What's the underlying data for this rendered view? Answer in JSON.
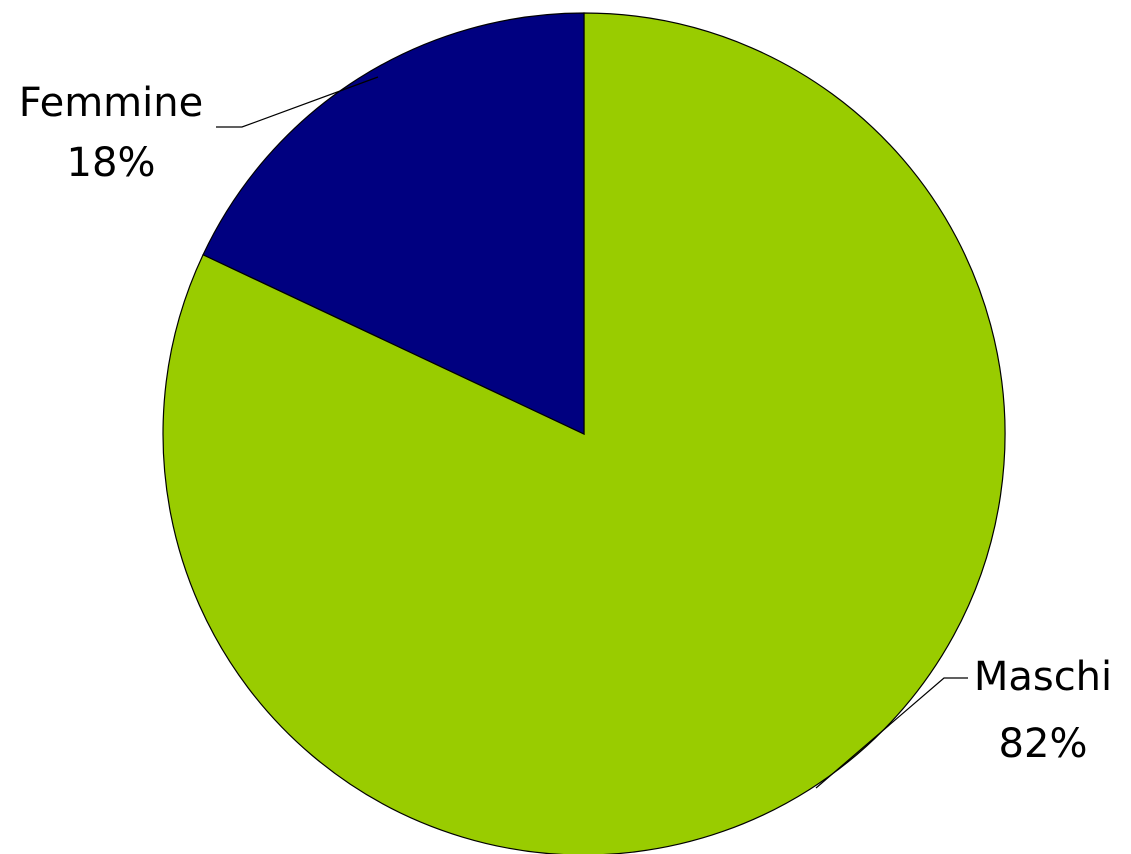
{
  "chart_data": {
    "type": "pie",
    "title": "",
    "start_angle_deg": 90,
    "direction": "clockwise",
    "slices": [
      {
        "label": "Maschi",
        "value": 82,
        "percent_label": "82%",
        "color": "#99CC00"
      },
      {
        "label": "Femmine",
        "value": 18,
        "percent_label": "18%",
        "color": "#000080"
      }
    ],
    "legend": "none",
    "label_position": "outside-with-leader"
  }
}
